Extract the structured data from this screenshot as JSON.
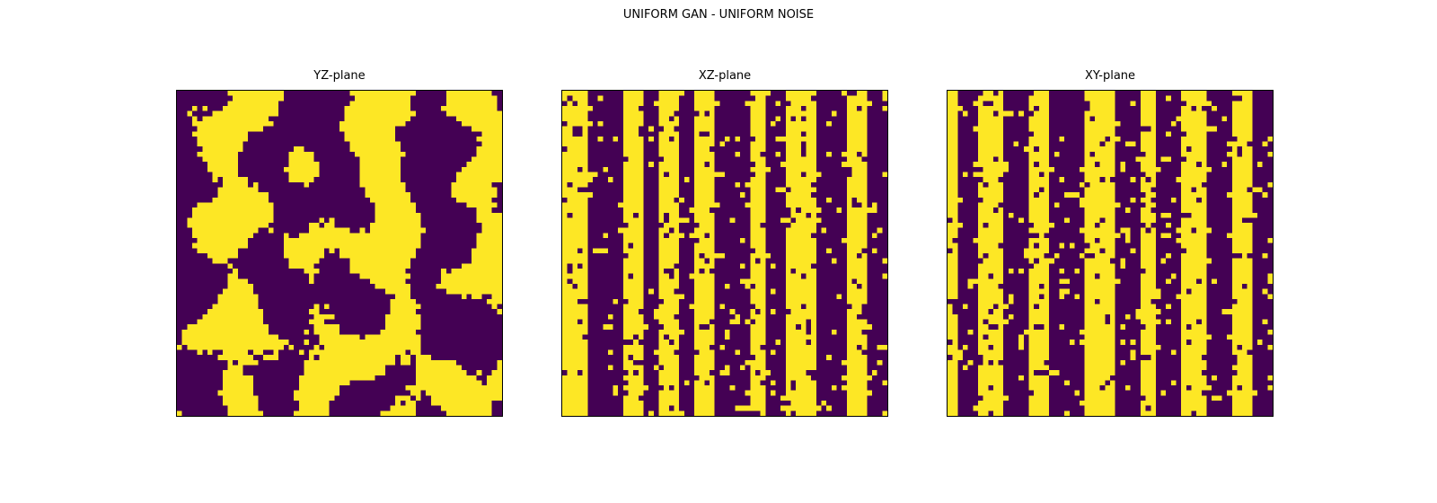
{
  "suptitle": "UNIFORM GAN - UNIFORM NOISE",
  "chart_data": [
    {
      "type": "heatmap",
      "title": "YZ-plane",
      "grid_size": 64,
      "values": "binary (0/1)",
      "colors": {
        "0": "#440154",
        "1": "#fde725"
      },
      "pattern": "labyrinth-like blobs of yellow and purple distributed evenly",
      "axes": "hidden"
    },
    {
      "type": "heatmap",
      "title": "XZ-plane",
      "grid_size": 64,
      "values": "binary (0/1)",
      "colors": {
        "0": "#440154",
        "1": "#fde725"
      },
      "pattern": "vertical yellow stripes with ragged edges",
      "axes": "hidden"
    },
    {
      "type": "heatmap",
      "title": "XY-plane",
      "grid_size": 64,
      "values": "binary (0/1)",
      "colors": {
        "0": "#440154",
        "1": "#fde725"
      },
      "pattern": "vertical yellow stripes with ragged edges",
      "axes": "hidden"
    }
  ]
}
